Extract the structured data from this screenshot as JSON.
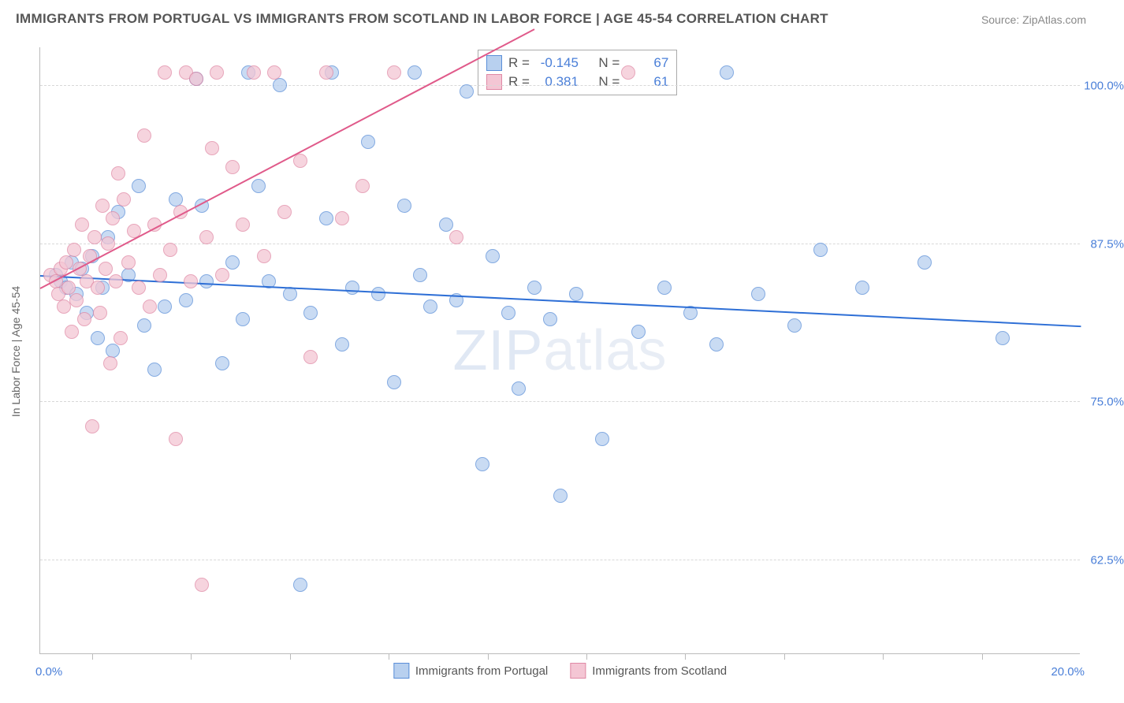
{
  "title": "IMMIGRANTS FROM PORTUGAL VS IMMIGRANTS FROM SCOTLAND IN LABOR FORCE | AGE 45-54 CORRELATION CHART",
  "source": "Source: ZipAtlas.com",
  "watermark": {
    "bold": "ZIP",
    "light": "atlas"
  },
  "y_axis_label": "In Labor Force | Age 45-54",
  "x_axis": {
    "min": 0,
    "max": 20,
    "label_min": "0.0%",
    "label_max": "20.0%",
    "ticks_pct": [
      5,
      14.5,
      24,
      33.5,
      43,
      52.5,
      62,
      71.5,
      81,
      90.5
    ]
  },
  "y_axis": {
    "min": 55,
    "max": 103,
    "grid": [
      62.5,
      75,
      87.5,
      100
    ],
    "labels": [
      "62.5%",
      "75.0%",
      "87.5%",
      "100.0%"
    ]
  },
  "colors": {
    "portugal_fill": "#b8d0ef",
    "portugal_stroke": "#5a8ed8",
    "scotland_fill": "#f4c6d4",
    "scotland_stroke": "#e089a5",
    "portugal_line": "#2e6fd6",
    "scotland_line": "#e05a8a",
    "tick_text": "#4a7fd8",
    "grid": "#d8d8d8",
    "axis": "#bbbbbb",
    "title_text": "#555555",
    "source_text": "#888888"
  },
  "series": [
    {
      "name": "Immigrants from Portugal",
      "color_key": "portugal",
      "stats": {
        "R": "-0.145",
        "N": "67"
      },
      "trend": {
        "x1": 0,
        "y1": 85.0,
        "x2": 20,
        "y2": 81.0
      },
      "points": [
        [
          0.3,
          85
        ],
        [
          0.4,
          84.5
        ],
        [
          0.5,
          84
        ],
        [
          0.6,
          86
        ],
        [
          0.7,
          83.5
        ],
        [
          0.8,
          85.5
        ],
        [
          0.9,
          82
        ],
        [
          1.0,
          86.5
        ],
        [
          1.1,
          80
        ],
        [
          1.2,
          84
        ],
        [
          1.3,
          88
        ],
        [
          1.4,
          79
        ],
        [
          1.5,
          90
        ],
        [
          1.7,
          85
        ],
        [
          1.9,
          92
        ],
        [
          2.0,
          81
        ],
        [
          2.2,
          77.5
        ],
        [
          2.4,
          82.5
        ],
        [
          2.6,
          91
        ],
        [
          2.8,
          83
        ],
        [
          3.0,
          100.5
        ],
        [
          3.1,
          90.5
        ],
        [
          3.2,
          84.5
        ],
        [
          3.5,
          78
        ],
        [
          3.7,
          86
        ],
        [
          3.9,
          81.5
        ],
        [
          4.0,
          101
        ],
        [
          4.2,
          92
        ],
        [
          4.4,
          84.5
        ],
        [
          4.6,
          100
        ],
        [
          4.8,
          83.5
        ],
        [
          5.0,
          60.5
        ],
        [
          5.2,
          82
        ],
        [
          5.5,
          89.5
        ],
        [
          5.6,
          101
        ],
        [
          5.8,
          79.5
        ],
        [
          6.0,
          84
        ],
        [
          6.3,
          95.5
        ],
        [
          6.5,
          83.5
        ],
        [
          6.8,
          76.5
        ],
        [
          7.0,
          90.5
        ],
        [
          7.2,
          101
        ],
        [
          7.3,
          85
        ],
        [
          7.5,
          82.5
        ],
        [
          7.8,
          89
        ],
        [
          8.0,
          83
        ],
        [
          8.2,
          99.5
        ],
        [
          8.5,
          70
        ],
        [
          8.7,
          86.5
        ],
        [
          9.0,
          82
        ],
        [
          9.2,
          76
        ],
        [
          9.5,
          84
        ],
        [
          9.8,
          81.5
        ],
        [
          10.0,
          67.5
        ],
        [
          10.3,
          83.5
        ],
        [
          10.8,
          72
        ],
        [
          11.5,
          80.5
        ],
        [
          12.0,
          84
        ],
        [
          12.5,
          82
        ],
        [
          13.0,
          79.5
        ],
        [
          13.2,
          101
        ],
        [
          13.8,
          83.5
        ],
        [
          14.5,
          81
        ],
        [
          15.0,
          87
        ],
        [
          15.8,
          84
        ],
        [
          17.0,
          86
        ],
        [
          18.5,
          80
        ]
      ]
    },
    {
      "name": "Immigrants from Scotland",
      "color_key": "scotland",
      "stats": {
        "R": "0.381",
        "N": "61"
      },
      "trend": {
        "x1": 0,
        "y1": 84.0,
        "x2": 9.5,
        "y2": 104.5
      },
      "points": [
        [
          0.2,
          85
        ],
        [
          0.3,
          84.5
        ],
        [
          0.35,
          83.5
        ],
        [
          0.4,
          85.5
        ],
        [
          0.45,
          82.5
        ],
        [
          0.5,
          86
        ],
        [
          0.55,
          84
        ],
        [
          0.6,
          80.5
        ],
        [
          0.65,
          87
        ],
        [
          0.7,
          83
        ],
        [
          0.75,
          85.5
        ],
        [
          0.8,
          89
        ],
        [
          0.85,
          81.5
        ],
        [
          0.9,
          84.5
        ],
        [
          0.95,
          86.5
        ],
        [
          1.0,
          73
        ],
        [
          1.05,
          88
        ],
        [
          1.1,
          84
        ],
        [
          1.15,
          82
        ],
        [
          1.2,
          90.5
        ],
        [
          1.25,
          85.5
        ],
        [
          1.3,
          87.5
        ],
        [
          1.35,
          78
        ],
        [
          1.4,
          89.5
        ],
        [
          1.45,
          84.5
        ],
        [
          1.5,
          93
        ],
        [
          1.55,
          80
        ],
        [
          1.6,
          91
        ],
        [
          1.7,
          86
        ],
        [
          1.8,
          88.5
        ],
        [
          1.9,
          84
        ],
        [
          2.0,
          96
        ],
        [
          2.1,
          82.5
        ],
        [
          2.2,
          89
        ],
        [
          2.3,
          85
        ],
        [
          2.4,
          101
        ],
        [
          2.5,
          87
        ],
        [
          2.6,
          72
        ],
        [
          2.7,
          90
        ],
        [
          2.8,
          101
        ],
        [
          2.9,
          84.5
        ],
        [
          3.0,
          100.5
        ],
        [
          3.1,
          60.5
        ],
        [
          3.2,
          88
        ],
        [
          3.3,
          95
        ],
        [
          3.4,
          101
        ],
        [
          3.5,
          85
        ],
        [
          3.7,
          93.5
        ],
        [
          3.9,
          89
        ],
        [
          4.1,
          101
        ],
        [
          4.3,
          86.5
        ],
        [
          4.5,
          101
        ],
        [
          4.7,
          90
        ],
        [
          5.0,
          94
        ],
        [
          5.2,
          78.5
        ],
        [
          5.5,
          101
        ],
        [
          5.8,
          89.5
        ],
        [
          6.2,
          92
        ],
        [
          6.8,
          101
        ],
        [
          8.0,
          88
        ],
        [
          11.3,
          101
        ]
      ]
    }
  ],
  "stats_labels": {
    "R": "R =",
    "N": "N ="
  },
  "legend_labels": [
    "Immigrants from Portugal",
    "Immigrants from Scotland"
  ]
}
